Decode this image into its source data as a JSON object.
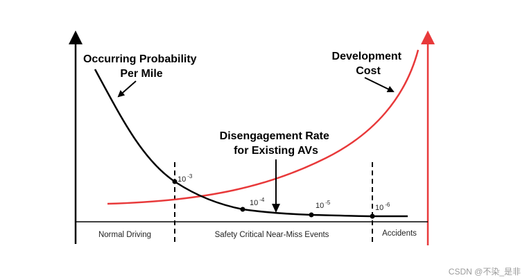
{
  "colors": {
    "probability_curve": "#000000",
    "cost_curve": "#e8393a",
    "left_axis": "#000000",
    "right_axis": "#e8393a"
  },
  "labels": {
    "probability_line1": "Occurring Probability",
    "probability_line2": "Per Mile",
    "cost_line1": "Development",
    "cost_line2": "Cost",
    "disengagement_line1": "Disengagement Rate",
    "disengagement_line2": "for Existing AVs"
  },
  "regions": {
    "normal": "Normal Driving",
    "near_miss": "Safety Critical Near-Miss Events",
    "accidents": "Accidents"
  },
  "points": [
    {
      "base": "10",
      "exp": "-3"
    },
    {
      "base": "10",
      "exp": "-4"
    },
    {
      "base": "10",
      "exp": "-5"
    },
    {
      "base": "10",
      "exp": "-6"
    }
  ],
  "watermark": "CSDN @不染_是非"
}
